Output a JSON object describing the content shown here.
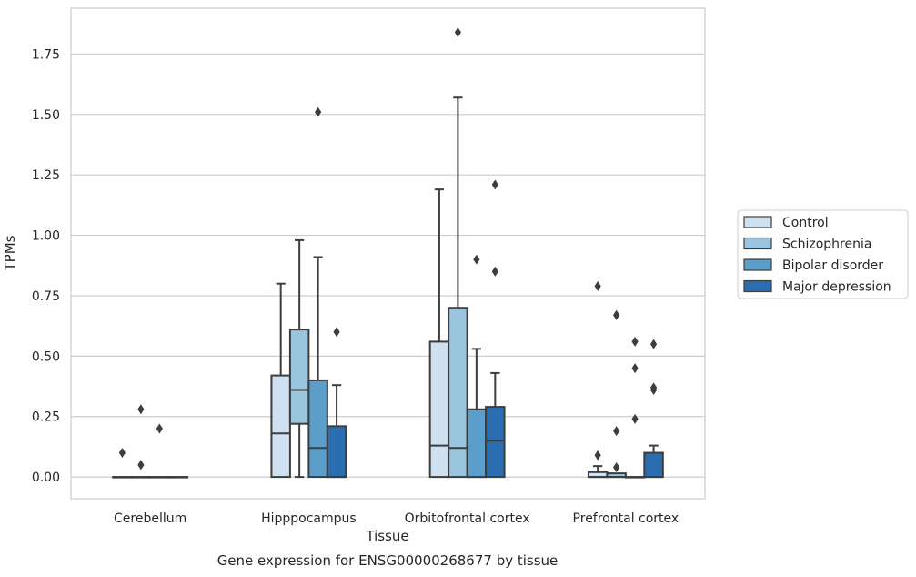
{
  "chart_data": {
    "type": "box",
    "caption": "Gene expression for ENSG00000268677 by tissue",
    "xlabel": "Tissue",
    "ylabel": "TPMs",
    "ylim": [
      -0.09,
      1.94
    ],
    "yticks": [
      0.0,
      0.25,
      0.5,
      0.75,
      1.0,
      1.25,
      1.5,
      1.75
    ],
    "ytick_labels": [
      "0.00",
      "0.25",
      "0.50",
      "0.75",
      "1.00",
      "1.25",
      "1.50",
      "1.75"
    ],
    "grid": "horizontal",
    "legend_position": "right",
    "categories": [
      "Cerebellum",
      "Hipppocampus",
      "Orbitofrontal cortex",
      "Prefrontal cortex"
    ],
    "series": [
      {
        "name": "Control",
        "color": "#cfe0f1",
        "boxes": [
          {
            "q1": 0.0,
            "median": 0.0,
            "q3": 0.0,
            "whisker_low": 0.0,
            "whisker_high": 0.0,
            "outliers": [
              0.1
            ]
          },
          {
            "q1": 0.0,
            "median": 0.18,
            "q3": 0.42,
            "whisker_low": 0.0,
            "whisker_high": 0.8,
            "outliers": []
          },
          {
            "q1": 0.0,
            "median": 0.13,
            "q3": 0.56,
            "whisker_low": 0.0,
            "whisker_high": 1.19,
            "outliers": []
          },
          {
            "q1": 0.0,
            "median": 0.0,
            "q3": 0.02,
            "whisker_low": 0.0,
            "whisker_high": 0.045,
            "outliers": [
              0.09,
              0.79
            ]
          }
        ]
      },
      {
        "name": "Schizophrenia",
        "color": "#9ac5de",
        "boxes": [
          {
            "q1": 0.0,
            "median": 0.0,
            "q3": 0.0,
            "whisker_low": 0.0,
            "whisker_high": 0.0,
            "outliers": [
              0.05,
              0.28
            ]
          },
          {
            "q1": 0.22,
            "median": 0.36,
            "q3": 0.61,
            "whisker_low": 0.0,
            "whisker_high": 0.98,
            "outliers": []
          },
          {
            "q1": 0.0,
            "median": 0.12,
            "q3": 0.7,
            "whisker_low": 0.0,
            "whisker_high": 1.57,
            "outliers": [
              1.84
            ]
          },
          {
            "q1": 0.0,
            "median": 0.0,
            "q3": 0.015,
            "whisker_low": 0.0,
            "whisker_high": 0.015,
            "outliers": [
              0.04,
              0.19,
              0.67
            ]
          }
        ]
      },
      {
        "name": "Bipolar disorder",
        "color": "#5b9ec9",
        "boxes": [
          {
            "q1": 0.0,
            "median": 0.0,
            "q3": 0.0,
            "whisker_low": 0.0,
            "whisker_high": 0.0,
            "outliers": [
              0.2
            ]
          },
          {
            "q1": 0.0,
            "median": 0.12,
            "q3": 0.4,
            "whisker_low": 0.0,
            "whisker_high": 0.91,
            "outliers": [
              1.51
            ]
          },
          {
            "q1": 0.0,
            "median": 0.0,
            "q3": 0.28,
            "whisker_low": 0.0,
            "whisker_high": 0.53,
            "outliers": [
              0.9
            ]
          },
          {
            "q1": 0.0,
            "median": 0.0,
            "q3": 0.0,
            "whisker_low": 0.0,
            "whisker_high": 0.0,
            "outliers": [
              0.24,
              0.45,
              0.56
            ]
          }
        ]
      },
      {
        "name": "Major depression",
        "color": "#2a6eaf",
        "boxes": [
          {
            "q1": 0.0,
            "median": 0.0,
            "q3": 0.0,
            "whisker_low": 0.0,
            "whisker_high": 0.0,
            "outliers": []
          },
          {
            "q1": 0.0,
            "median": 0.0,
            "q3": 0.21,
            "whisker_low": 0.0,
            "whisker_high": 0.38,
            "outliers": [
              0.6
            ]
          },
          {
            "q1": 0.0,
            "median": 0.15,
            "q3": 0.29,
            "whisker_low": 0.0,
            "whisker_high": 0.43,
            "outliers": [
              0.85,
              1.21
            ]
          },
          {
            "q1": 0.0,
            "median": 0.0,
            "q3": 0.1,
            "whisker_low": 0.0,
            "whisker_high": 0.13,
            "outliers": [
              0.36,
              0.37,
              0.55
            ]
          }
        ]
      }
    ]
  }
}
